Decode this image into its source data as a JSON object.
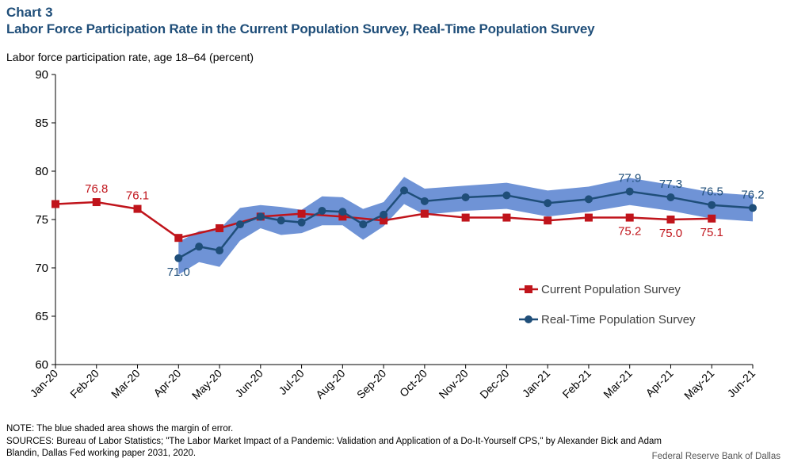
{
  "header": {
    "chart_number": "Chart 3",
    "title": "Labor Force Participation Rate in the Current Population Survey, Real-Time Population Survey"
  },
  "footer": {
    "note": "NOTE: The blue shaded area shows the margin of error.",
    "sources_line1": "SOURCES: Bureau of Labor Statistics; \"The Labor Market Impact of a Pandemic: Validation and Application of a Do-It-Yourself CPS,\" by Alexander Bick and Adam",
    "sources_line2": "Blandin, Dallas Fed working paper 2031, 2020.",
    "credit": "Federal Reserve Bank of Dallas"
  },
  "colors": {
    "cps": "#c0141b",
    "rps": "#1f4e79",
    "band": "#6f93d6",
    "axis": "#000000"
  },
  "chart_data": {
    "type": "line",
    "title": "Labor Force Participation Rate in the Current Population Survey, Real-Time Population Survey",
    "ylabel": "Labor force participation rate, age 18–64 (percent)",
    "xlabel": "",
    "ylim": [
      60,
      90
    ],
    "yticks": [
      60,
      65,
      70,
      75,
      80,
      85,
      90
    ],
    "grid": false,
    "legend_position": "right",
    "categories": [
      "Jan-20",
      "Feb-20",
      "Mar-20",
      "Apr-20",
      "May-20",
      "Jun-20",
      "Jul-20",
      "Aug-20",
      "Sep-20",
      "Oct-20",
      "Nov-20",
      "Dec-20",
      "Jan-21",
      "Feb-21",
      "Mar-21",
      "Apr-21",
      "May-21",
      "Jun-21"
    ],
    "series": [
      {
        "name": "Current Population Survey",
        "x": [
          0,
          1,
          2,
          3,
          4,
          5,
          6,
          7,
          8,
          9,
          10,
          11,
          12,
          13,
          14,
          15,
          16
        ],
        "values": [
          76.6,
          76.8,
          76.1,
          73.1,
          74.1,
          75.3,
          75.6,
          75.3,
          74.9,
          75.6,
          75.2,
          75.2,
          74.9,
          75.2,
          75.2,
          75.0,
          75.1
        ]
      },
      {
        "name": "Real-Time Population Survey",
        "x": [
          3,
          3.5,
          4,
          4.5,
          5,
          5.5,
          6,
          6.5,
          7,
          7.5,
          8,
          8.5,
          9,
          10,
          11,
          12,
          13,
          14,
          15,
          16,
          17
        ],
        "values": [
          71.0,
          72.2,
          71.8,
          74.5,
          75.3,
          74.9,
          74.7,
          75.9,
          75.8,
          74.5,
          75.5,
          78.0,
          76.9,
          77.3,
          77.5,
          76.7,
          77.1,
          77.9,
          77.3,
          76.5,
          76.2
        ],
        "error_band": {
          "upper": [
            72.7,
            73.8,
            74.0,
            76.2,
            76.5,
            76.3,
            76.0,
            77.4,
            77.3,
            76.1,
            76.8,
            79.4,
            78.2,
            78.5,
            78.8,
            78.0,
            78.4,
            79.3,
            78.6,
            77.8,
            77.5
          ],
          "lower": [
            69.3,
            70.6,
            70.1,
            72.8,
            74.1,
            73.4,
            73.6,
            74.4,
            74.4,
            72.9,
            74.3,
            76.6,
            75.5,
            75.9,
            76.1,
            75.3,
            75.8,
            76.5,
            75.9,
            75.1,
            74.8
          ]
        }
      }
    ],
    "annotations": [
      {
        "series": 0,
        "index": 1,
        "text": "76.8",
        "pos": "above"
      },
      {
        "series": 0,
        "index": 2,
        "text": "76.1",
        "pos": "above"
      },
      {
        "series": 0,
        "index": 14,
        "text": "75.2",
        "pos": "below"
      },
      {
        "series": 0,
        "index": 15,
        "text": "75.0",
        "pos": "below"
      },
      {
        "series": 0,
        "index": 16,
        "text": "75.1",
        "pos": "below"
      },
      {
        "series": 1,
        "index": 0,
        "text": "71.0",
        "pos": "below"
      },
      {
        "series": 1,
        "index": 17,
        "text": "77.9",
        "pos": "above"
      },
      {
        "series": 1,
        "index": 18,
        "text": "77.3",
        "pos": "above"
      },
      {
        "series": 1,
        "index": 19,
        "text": "76.5",
        "pos": "above"
      },
      {
        "series": 1,
        "index": 20,
        "text": "76.2",
        "pos": "above"
      }
    ]
  }
}
